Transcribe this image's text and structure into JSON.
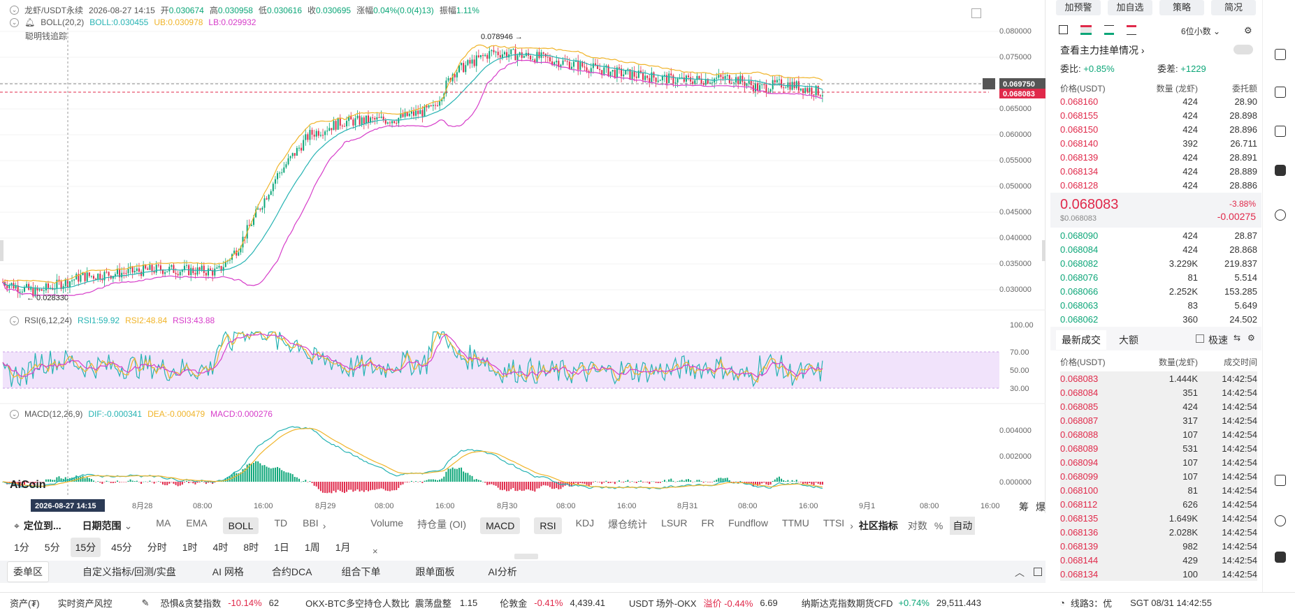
{
  "header": {
    "symbol": "龙虾/USDT永续",
    "datetime": "2026-08-27 14:15",
    "open_label": "开",
    "open": "0.030674",
    "high_label": "高",
    "high": "0.030958",
    "low_label": "低",
    "low": "0.030616",
    "close_label": "收",
    "close": "0.030695",
    "change_label": "涨幅",
    "change": "0.04%(0.0(4)13)",
    "amp_label": "振幅",
    "amp": "1.11%"
  },
  "boll": {
    "name": "BOLL(20,2)",
    "mid": "BOLL:0.030455",
    "ub": "UB:0.030978",
    "lb": "LB:0.029932",
    "sub": "聪明钱追踪"
  },
  "rsi": {
    "name": "RSI(6,12,24)",
    "r1": "RSI1:59.92",
    "r2": "RSI2:48.84",
    "r3": "RSI3:43.88"
  },
  "macd": {
    "name": "MACD(12,26,9)",
    "dif": "DIF:-0.000341",
    "dea": "DEA:-0.000479",
    "macd": "MACD:0.000276"
  },
  "annotations": {
    "high": "0.078946",
    "low": "0.028330"
  },
  "price_axis": [
    "0.080000",
    "0.075000",
    "0.070000",
    "0.065000",
    "0.060000",
    "0.055000",
    "0.050000",
    "0.045000",
    "0.040000",
    "0.035000",
    "0.030000"
  ],
  "price_tags": {
    "mark": "0.069750",
    "last": "0.068083"
  },
  "rsi_axis": [
    "100.00",
    "70.00",
    "50.00",
    "30.00"
  ],
  "macd_axis": [
    "0.004000",
    "0.002000",
    "0.000000"
  ],
  "time_axis": [
    "8月28",
    "08:00",
    "16:00",
    "8月29",
    "08:00",
    "16:00",
    "8月30",
    "08:00",
    "16:00",
    "8月31",
    "08:00",
    "16:00",
    "9月1",
    "08:00",
    "16:00"
  ],
  "crosshair_time": "2026-08-27 14:15",
  "logo": "AiCoin",
  "corner_btns": [
    "筹",
    "爆"
  ],
  "toolbar1": {
    "locate": "定位到...",
    "range": "日期范围",
    "main_ind": [
      "MA",
      "EMA",
      "BOLL",
      "TD",
      "BBI"
    ],
    "sub_ind": [
      "Volume",
      "持仓量 (OI)",
      "MACD",
      "RSI",
      "KDJ",
      "爆仓统计",
      "LSUR",
      "FR",
      "Fundflow",
      "TTMU",
      "TTSI"
    ],
    "community": "社区指标",
    "log": "对数",
    "pct": "%",
    "auto": "自动"
  },
  "intervals": [
    "1分",
    "5分",
    "15分",
    "45分",
    "分时",
    "1时",
    "4时",
    "8时",
    "1日",
    "1周",
    "1月"
  ],
  "active_interval": "15分",
  "tabs3": [
    "委单区",
    "自定义指标/回测/实盘",
    "AI 网格",
    "合约DCA",
    "组合下单",
    "跟单面板",
    "AI分析"
  ],
  "panel": {
    "buttons": [
      "加预警",
      "加自选",
      "策略",
      "简况"
    ],
    "precision": "6位小数",
    "view_main": "查看主力挂单情况",
    "ratio_label": "委比:",
    "ratio": "+0.85%",
    "diff_label": "委差:",
    "diff": "+1229",
    "cols": [
      "价格(USDT)",
      "数量 (龙虾)",
      "委托额"
    ],
    "asks": [
      [
        "0.068160",
        "424",
        "28.90"
      ],
      [
        "0.068155",
        "424",
        "28.898"
      ],
      [
        "0.068150",
        "424",
        "28.896"
      ],
      [
        "0.068140",
        "392",
        "26.711"
      ],
      [
        "0.068139",
        "424",
        "28.891"
      ],
      [
        "0.068134",
        "424",
        "28.889"
      ],
      [
        "0.068128",
        "424",
        "28.886"
      ]
    ],
    "last_price": "0.068083",
    "last_usd": "$0.068083",
    "last_pct": "-3.88%",
    "last_chg": "-0.00275",
    "bids": [
      [
        "0.068090",
        "424",
        "28.87"
      ],
      [
        "0.068084",
        "424",
        "28.868"
      ],
      [
        "0.068082",
        "3.229K",
        "219.837"
      ],
      [
        "0.068076",
        "81",
        "5.514"
      ],
      [
        "0.068066",
        "2.252K",
        "153.285"
      ],
      [
        "0.068063",
        "83",
        "5.649"
      ],
      [
        "0.068062",
        "360",
        "24.502"
      ]
    ],
    "trades_tab": "最新成交",
    "big_tab": "大额",
    "fast": "极速",
    "trade_cols": [
      "价格(USDT)",
      "数量(龙虾)",
      "成交时间"
    ],
    "trades": [
      [
        "0.068083",
        "1.444K",
        "14:42:54"
      ],
      [
        "0.068084",
        "351",
        "14:42:54"
      ],
      [
        "0.068085",
        "424",
        "14:42:54"
      ],
      [
        "0.068087",
        "317",
        "14:42:54"
      ],
      [
        "0.068088",
        "107",
        "14:42:54"
      ],
      [
        "0.068089",
        "531",
        "14:42:54"
      ],
      [
        "0.068094",
        "107",
        "14:42:54"
      ],
      [
        "0.068099",
        "107",
        "14:42:54"
      ],
      [
        "0.068100",
        "81",
        "14:42:54"
      ],
      [
        "0.068112",
        "626",
        "14:42:54"
      ],
      [
        "0.068135",
        "1.649K",
        "14:42:54"
      ],
      [
        "0.068136",
        "2.028K",
        "14:42:54"
      ],
      [
        "0.068139",
        "982",
        "14:42:54"
      ],
      [
        "0.068144",
        "429",
        "14:42:54"
      ],
      [
        "0.068134",
        "100",
        "14:42:54"
      ]
    ]
  },
  "bottom": {
    "assets": "资产(₮)",
    "risk": "实时资产风控",
    "fear_label": "恐惧&贪婪指数",
    "fear_pct": "-10.14%",
    "fear_val": "62",
    "okx_label": "OKX-BTC多空持仓人数比",
    "okx_state": "震荡盘整",
    "okx_val": "1.15",
    "gold_label": "伦敦金",
    "gold_pct": "-0.41%",
    "gold_val": "4,439.41",
    "usdt_label": "USDT 场外-OKX",
    "usdt_state": "溢价 -0.44%",
    "usdt_val": "6.69",
    "ndx_label": "纳斯达克指数期货CFD",
    "ndx_pct": "+0.74%",
    "ndx_val": "29,511.443",
    "line": "线路3：优",
    "clock": "SGT 08/31 14:42:55"
  },
  "colors": {
    "up": "#0ca678",
    "down": "#e0294a",
    "boll_mid": "#26b3b3",
    "boll_ub": "#f0b429",
    "boll_lb": "#d63cc9"
  }
}
